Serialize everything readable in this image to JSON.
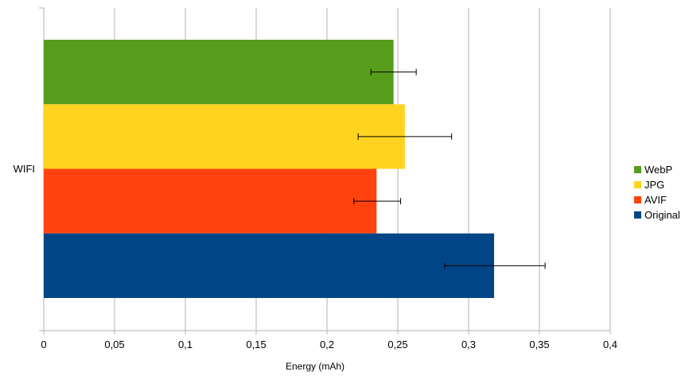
{
  "chart_data": {
    "type": "bar",
    "orientation": "horizontal",
    "title": "",
    "categories": [
      "WIFI"
    ],
    "xlabel": "Energy (mAh)",
    "ylabel": "",
    "xlim": [
      0,
      0.4
    ],
    "x_ticks": [
      0,
      0.05,
      0.1,
      0.15,
      0.2,
      0.25,
      0.3,
      0.35,
      0.4
    ],
    "x_tick_labels": [
      "0",
      "0,05",
      "0,1",
      "0,15",
      "0,2",
      "0,25",
      "0,3",
      "0,35",
      "0,4"
    ],
    "grid": "vertical",
    "legend_position": "right",
    "series": [
      {
        "name": "WebP",
        "color": "#579d1c",
        "values": [
          0.247
        ],
        "error_low": [
          0.231
        ],
        "error_high": [
          0.263
        ]
      },
      {
        "name": "JPG",
        "color": "#ffd320",
        "values": [
          0.255
        ],
        "error_low": [
          0.222
        ],
        "error_high": [
          0.288
        ]
      },
      {
        "name": "AVIF",
        "color": "#ff420e",
        "values": [
          0.235
        ],
        "error_low": [
          0.219
        ],
        "error_high": [
          0.252
        ]
      },
      {
        "name": "Original",
        "color": "#004586",
        "values": [
          0.318
        ],
        "error_low": [
          0.283
        ],
        "error_high": [
          0.354
        ]
      }
    ]
  }
}
